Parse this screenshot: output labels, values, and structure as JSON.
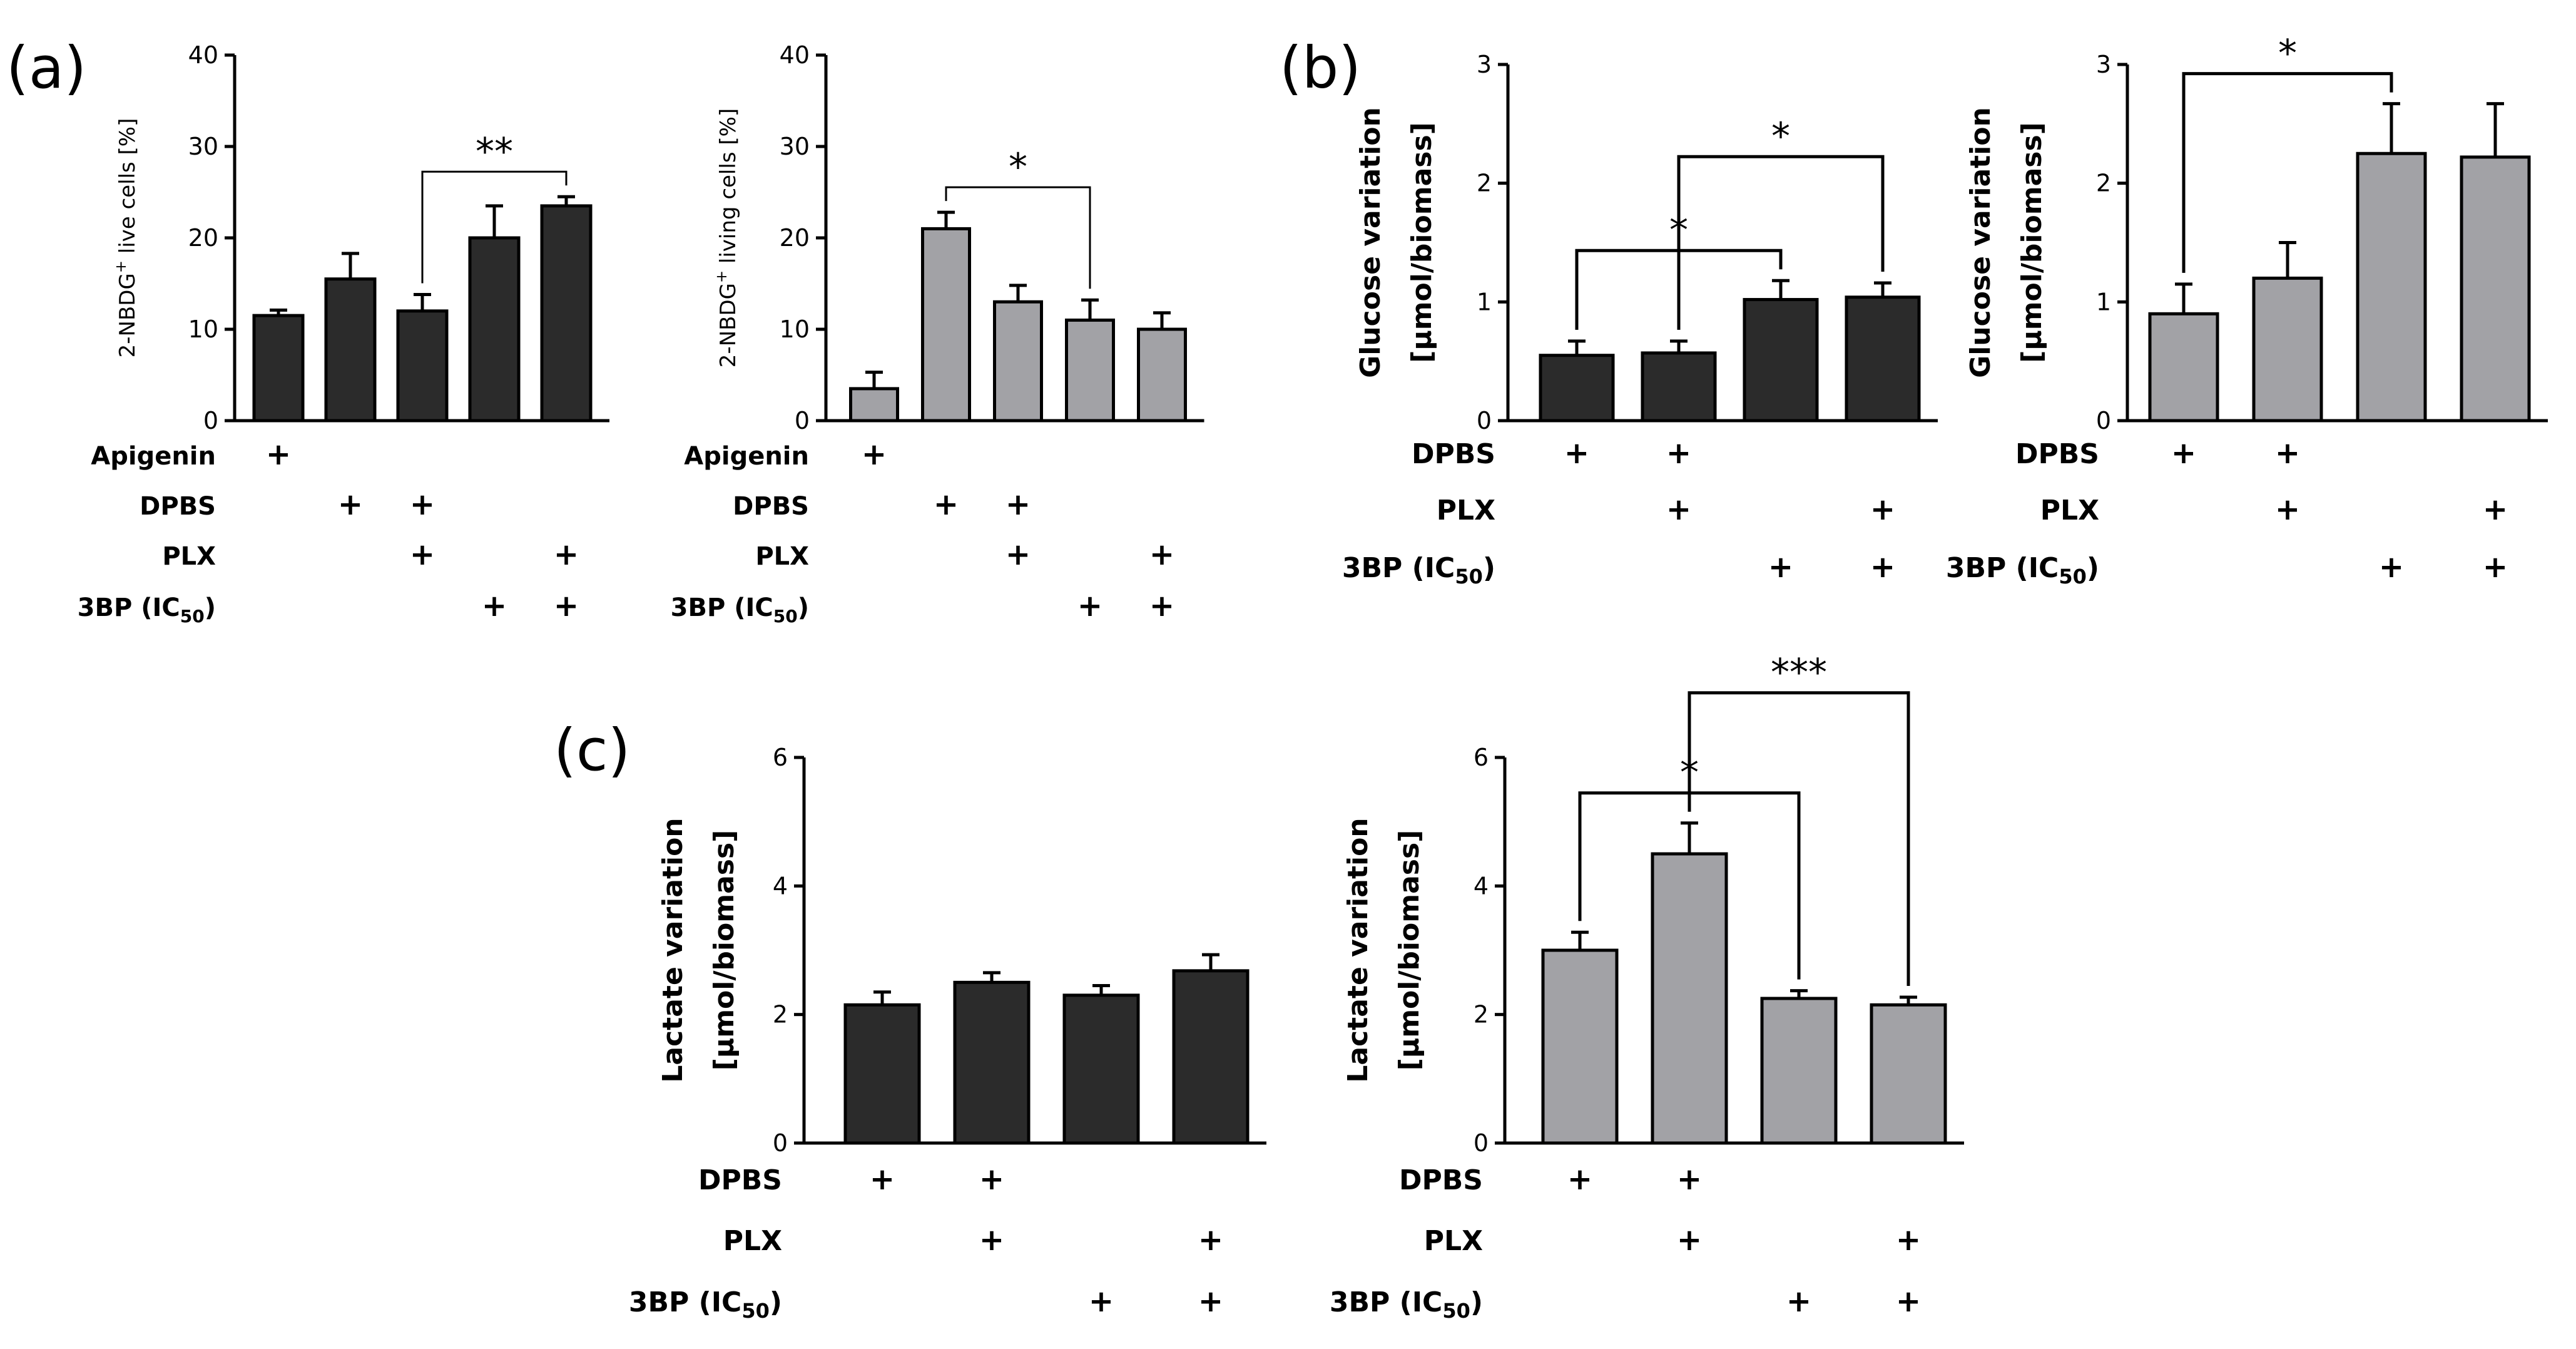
{
  "figure": {
    "panel_labels": [
      "(a)",
      "(b)",
      "(c)"
    ],
    "colors": {
      "dark_bar": "#2b2b2b",
      "light_bar": "#a2a2a6",
      "axis": "#000000"
    }
  },
  "chart_data": [
    {
      "id": "a1",
      "panel": "(a)",
      "type": "bar",
      "ylabel_parts": [
        "2-NBDG",
        "+",
        " live cells [%]"
      ],
      "ylim": [
        0,
        40
      ],
      "yticks": [
        "0",
        "10",
        "20",
        "30",
        "40"
      ],
      "bar_color": "#2b2b2b",
      "values": [
        11.5,
        15.5,
        12.0,
        20.0,
        23.5
      ],
      "errors": [
        0.6,
        2.8,
        1.8,
        3.5,
        1.0
      ],
      "rows": [
        {
          "label": "Apigenin",
          "plus": [
            0
          ]
        },
        {
          "label": "DPBS",
          "plus": [
            1,
            2
          ]
        },
        {
          "label": "PLX",
          "plus": [
            2,
            4
          ]
        },
        {
          "label": "3BP (IC",
          "sub": "50",
          "close": ")",
          "plus": [
            3,
            4
          ]
        }
      ],
      "sig": [
        {
          "from": 2,
          "to": 4,
          "label": "**"
        }
      ]
    },
    {
      "id": "a2",
      "panel": "(a)",
      "type": "bar",
      "ylabel_parts": [
        "2-NBDG",
        "+",
        " living cells [%]"
      ],
      "ylim": [
        0,
        40
      ],
      "yticks": [
        "0",
        "10",
        "20",
        "30",
        "40"
      ],
      "bar_color": "#a2a2a6",
      "values": [
        3.5,
        21.0,
        13.0,
        11.0,
        10.0
      ],
      "errors": [
        1.8,
        1.8,
        1.8,
        2.2,
        1.8
      ],
      "rows": [
        {
          "label": "Apigenin",
          "plus": [
            0
          ]
        },
        {
          "label": "DPBS",
          "plus": [
            1,
            2
          ]
        },
        {
          "label": "PLX",
          "plus": [
            2,
            4
          ]
        },
        {
          "label": "3BP (IC",
          "sub": "50",
          "close": ")",
          "plus": [
            3,
            4
          ]
        }
      ],
      "sig": [
        {
          "from": 1,
          "to": 3,
          "label": "*"
        }
      ]
    },
    {
      "id": "b1",
      "panel": "(b)",
      "type": "bar",
      "ylabel_lines": [
        "Glucose variation",
        "[μmol/biomass]"
      ],
      "ylim": [
        0,
        3
      ],
      "yticks": [
        "0",
        "1",
        "2",
        "3"
      ],
      "bar_color": "#2b2b2b",
      "values": [
        0.55,
        0.57,
        1.02,
        1.04
      ],
      "errors": [
        0.12,
        0.1,
        0.16,
        0.12
      ],
      "rows": [
        {
          "label": "DPBS",
          "plus": [
            0,
            1
          ]
        },
        {
          "label": "PLX",
          "plus": [
            1,
            3
          ]
        },
        {
          "label": "3BP (IC",
          "sub": "50",
          "close": ")",
          "plus": [
            2,
            3
          ]
        }
      ],
      "sig": [
        {
          "from": 0,
          "to": 2,
          "label": "*"
        },
        {
          "from": 1,
          "to": 3,
          "label": "*"
        }
      ]
    },
    {
      "id": "b2",
      "panel": "(b)",
      "type": "bar",
      "ylabel_lines": [
        "Glucose variation",
        "[μmol/biomass]"
      ],
      "ylim": [
        0,
        3
      ],
      "yticks": [
        "0",
        "1",
        "2",
        "3"
      ],
      "bar_color": "#a2a2a6",
      "values": [
        0.9,
        1.2,
        2.25,
        2.22
      ],
      "errors": [
        0.25,
        0.3,
        0.42,
        0.45
      ],
      "rows": [
        {
          "label": "DPBS",
          "plus": [
            0,
            1
          ]
        },
        {
          "label": "PLX",
          "plus": [
            1,
            3
          ]
        },
        {
          "label": "3BP (IC",
          "sub": "50",
          "close": ")",
          "plus": [
            2,
            3
          ]
        }
      ],
      "sig": [
        {
          "from": 0,
          "to": 2,
          "label": "*"
        }
      ]
    },
    {
      "id": "c1",
      "panel": "(c)",
      "type": "bar",
      "ylabel_lines": [
        "Lactate variation",
        "[μmol/biomass]"
      ],
      "ylim": [
        0,
        6
      ],
      "yticks": [
        "0",
        "2",
        "4",
        "6"
      ],
      "bar_color": "#2b2b2b",
      "values": [
        2.15,
        2.5,
        2.3,
        2.68
      ],
      "errors": [
        0.2,
        0.15,
        0.15,
        0.25
      ],
      "rows": [
        {
          "label": "DPBS",
          "plus": [
            0,
            1
          ]
        },
        {
          "label": "PLX",
          "plus": [
            1,
            3
          ]
        },
        {
          "label": "3BP (IC",
          "sub": "50",
          "close": ")",
          "plus": [
            2,
            3
          ]
        }
      ],
      "sig": []
    },
    {
      "id": "c2",
      "panel": "(c)",
      "type": "bar",
      "ylabel_lines": [
        "Lactate variation",
        "[μmol/biomass]"
      ],
      "ylim": [
        0,
        6
      ],
      "yticks": [
        "0",
        "2",
        "4",
        "6"
      ],
      "bar_color": "#a2a2a6",
      "values": [
        3.0,
        4.5,
        2.25,
        2.15
      ],
      "errors": [
        0.28,
        0.48,
        0.12,
        0.12
      ],
      "rows": [
        {
          "label": "DPBS",
          "plus": [
            0,
            1
          ]
        },
        {
          "label": "PLX",
          "plus": [
            1,
            3
          ]
        },
        {
          "label": "3BP (IC",
          "sub": "50",
          "close": ")",
          "plus": [
            2,
            3
          ]
        }
      ],
      "sig": [
        {
          "from": 0,
          "to": 2,
          "label": "*"
        },
        {
          "from": 1,
          "to": 3,
          "label": "***"
        }
      ]
    }
  ]
}
